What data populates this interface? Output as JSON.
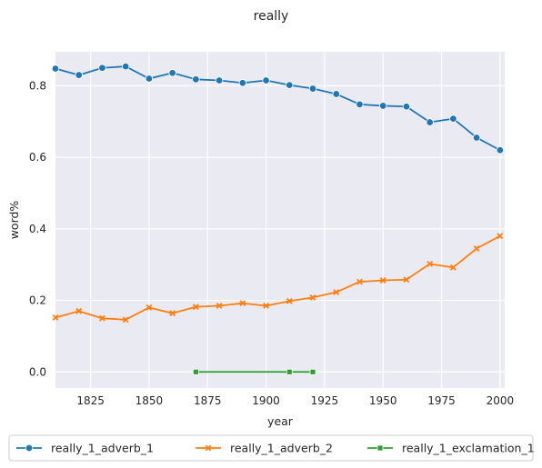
{
  "chart_data": {
    "type": "line",
    "title": "really",
    "xlabel": "year",
    "ylabel": "word%",
    "xlim": [
      1810,
      2002
    ],
    "ylim": [
      -0.045,
      0.895
    ],
    "xticks": [
      1825,
      1850,
      1875,
      1900,
      1925,
      1950,
      1975,
      2000
    ],
    "yticks": [
      0.0,
      0.2,
      0.4,
      0.6,
      0.8
    ],
    "xtick_labels": [
      "1825",
      "1850",
      "1875",
      "1900",
      "1925",
      "1950",
      "1975",
      "2000"
    ],
    "ytick_labels": [
      "0.0",
      "0.2",
      "0.4",
      "0.6",
      "0.8"
    ],
    "grid": true,
    "legend_position": "bottom",
    "series": [
      {
        "name": "really_1_adverb_1",
        "color": "#1f77b4",
        "marker": "circle",
        "x": [
          1810,
          1820,
          1830,
          1840,
          1850,
          1860,
          1870,
          1880,
          1890,
          1900,
          1910,
          1920,
          1930,
          1940,
          1950,
          1960,
          1970,
          1980,
          1990,
          2000
        ],
        "y": [
          0.848,
          0.83,
          0.85,
          0.854,
          0.82,
          0.836,
          0.818,
          0.815,
          0.808,
          0.815,
          0.802,
          0.792,
          0.777,
          0.748,
          0.744,
          0.742,
          0.698,
          0.708,
          0.655,
          0.62
        ]
      },
      {
        "name": "really_1_adverb_2",
        "color": "#ff7f0e",
        "marker": "x",
        "x": [
          1810,
          1820,
          1830,
          1840,
          1850,
          1860,
          1870,
          1880,
          1890,
          1900,
          1910,
          1920,
          1930,
          1940,
          1950,
          1960,
          1970,
          1980,
          1990,
          2000
        ],
        "y": [
          0.152,
          0.17,
          0.15,
          0.146,
          0.18,
          0.164,
          0.182,
          0.185,
          0.192,
          0.185,
          0.198,
          0.208,
          0.223,
          0.252,
          0.256,
          0.258,
          0.302,
          0.292,
          0.345,
          0.38
        ]
      },
      {
        "name": "really_1_exclamation_1",
        "color": "#2ca02c",
        "marker": "square",
        "x": [
          1870,
          1910,
          1920
        ],
        "y": [
          0.0,
          0.0,
          0.0
        ]
      }
    ]
  }
}
